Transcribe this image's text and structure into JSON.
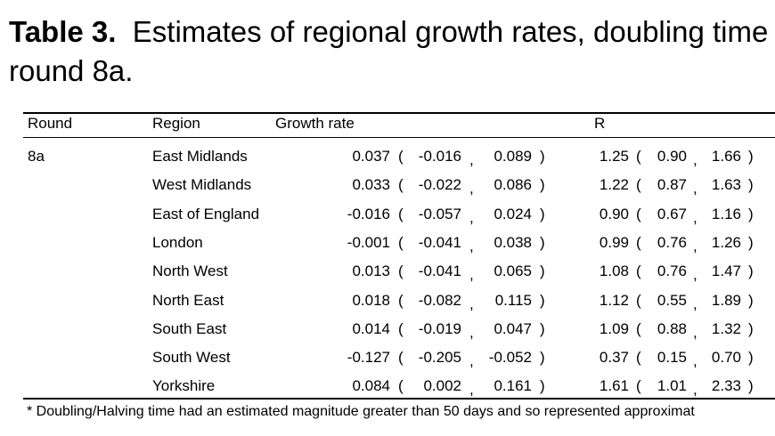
{
  "caption": {
    "label": "Table 3.",
    "text": "Estimates of regional growth rates, doubling time",
    "line2": "round 8a."
  },
  "headers": {
    "round": "Round",
    "region": "Region",
    "growth": "Growth rate",
    "r": "R"
  },
  "round_value": "8a",
  "rows": [
    {
      "region": "East Midlands",
      "g": "0.037",
      "g_lo": "-0.016",
      "g_hi": "0.089",
      "r": "1.25",
      "r_lo": "0.90",
      "r_hi": "1.66"
    },
    {
      "region": "West Midlands",
      "g": "0.033",
      "g_lo": "-0.022",
      "g_hi": "0.086",
      "r": "1.22",
      "r_lo": "0.87",
      "r_hi": "1.63"
    },
    {
      "region": "East of England",
      "g": "-0.016",
      "g_lo": "-0.057",
      "g_hi": "0.024",
      "r": "0.90",
      "r_lo": "0.67",
      "r_hi": "1.16"
    },
    {
      "region": "London",
      "g": "-0.001",
      "g_lo": "-0.041",
      "g_hi": "0.038",
      "r": "0.99",
      "r_lo": "0.76",
      "r_hi": "1.26"
    },
    {
      "region": "North West",
      "g": "0.013",
      "g_lo": "-0.041",
      "g_hi": "0.065",
      "r": "1.08",
      "r_lo": "0.76",
      "r_hi": "1.47"
    },
    {
      "region": "North East",
      "g": "0.018",
      "g_lo": "-0.082",
      "g_hi": "0.115",
      "r": "1.12",
      "r_lo": "0.55",
      "r_hi": "1.89"
    },
    {
      "region": "South East",
      "g": "0.014",
      "g_lo": "-0.019",
      "g_hi": "0.047",
      "r": "1.09",
      "r_lo": "0.88",
      "r_hi": "1.32"
    },
    {
      "region": "South West",
      "g": "-0.127",
      "g_lo": "-0.205",
      "g_hi": "-0.052",
      "r": "0.37",
      "r_lo": "0.15",
      "r_hi": "0.70"
    },
    {
      "region": "Yorkshire",
      "g": "0.084",
      "g_lo": "0.002",
      "g_hi": "0.161",
      "r": "1.61",
      "r_lo": "1.01",
      "r_hi": "2.33"
    }
  ],
  "footnote": "*  Doubling/Halving time had an estimated magnitude greater than 50 days and so represented approximat"
}
